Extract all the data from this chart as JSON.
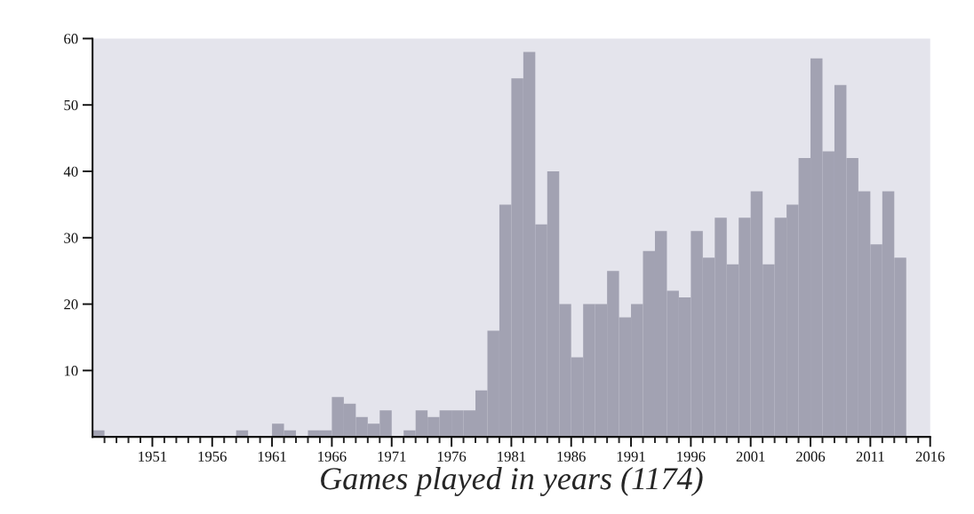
{
  "chart_data": {
    "type": "histogram",
    "xlabel": "Games played in years (1174)",
    "bins": [
      1946,
      1947,
      1948,
      1949,
      1950,
      1951,
      1952,
      1953,
      1954,
      1955,
      1956,
      1957,
      1958,
      1959,
      1960,
      1961,
      1962,
      1963,
      1964,
      1965,
      1966,
      1967,
      1968,
      1969,
      1970,
      1971,
      1972,
      1973,
      1974,
      1975,
      1976,
      1977,
      1978,
      1979,
      1980,
      1981,
      1982,
      1983,
      1984,
      1985,
      1986,
      1987,
      1988,
      1989,
      1990,
      1991,
      1992,
      1993,
      1994,
      1995,
      1996,
      1997,
      1998,
      1999,
      2000,
      2001,
      2002,
      2003,
      2004,
      2005,
      2006,
      2007,
      2008,
      2009,
      2010,
      2011,
      2012,
      2013,
      2014
    ],
    "values": [
      1,
      0,
      0,
      0,
      0,
      0,
      0,
      0,
      0,
      0,
      0,
      0,
      1,
      0,
      0,
      2,
      1,
      0,
      1,
      1,
      6,
      5,
      3,
      2,
      4,
      0,
      1,
      4,
      3,
      4,
      4,
      4,
      7,
      16,
      35,
      54,
      58,
      32,
      40,
      20,
      12,
      20,
      20,
      25,
      18,
      20,
      28,
      31,
      22,
      21,
      31,
      27,
      33,
      26,
      33,
      37,
      26,
      33,
      35,
      42,
      57,
      43,
      53,
      42,
      37,
      29,
      37,
      27
    ],
    "color": "#a2a2b2",
    "xlim": [
      1946,
      2016
    ],
    "xticks": [
      {
        "value": 1947,
        "label": null
      },
      {
        "value": 1948,
        "label": null
      },
      {
        "value": 1949,
        "label": null
      },
      {
        "value": 1950,
        "label": null
      },
      1951,
      {
        "value": 1952,
        "label": null
      },
      {
        "value": 1953,
        "label": null
      },
      {
        "value": 1954,
        "label": null
      },
      {
        "value": 1955,
        "label": null
      },
      1956,
      {
        "value": 1957,
        "label": null
      },
      {
        "value": 1958,
        "label": null
      },
      {
        "value": 1959,
        "label": null
      },
      {
        "value": 1960,
        "label": null
      },
      1961,
      {
        "value": 1962,
        "label": null
      },
      {
        "value": 1963,
        "label": null
      },
      {
        "value": 1964,
        "label": null
      },
      {
        "value": 1965,
        "label": null
      },
      1966,
      {
        "value": 1967,
        "label": null
      },
      {
        "value": 1968,
        "label": null
      },
      {
        "value": 1969,
        "label": null
      },
      {
        "value": 1970,
        "label": null
      },
      1971,
      {
        "value": 1972,
        "label": null
      },
      {
        "value": 1973,
        "label": null
      },
      {
        "value": 1974,
        "label": null
      },
      {
        "value": 1975,
        "label": null
      },
      1976,
      {
        "value": 1977,
        "label": null
      },
      {
        "value": 1978,
        "label": null
      },
      {
        "value": 1979,
        "label": null
      },
      {
        "value": 1980,
        "label": null
      },
      1981,
      {
        "value": 1982,
        "label": null
      },
      {
        "value": 1983,
        "label": null
      },
      {
        "value": 1984,
        "label": null
      },
      {
        "value": 1985,
        "label": null
      },
      1986,
      {
        "value": 1987,
        "label": null
      },
      {
        "value": 1988,
        "label": null
      },
      {
        "value": 1989,
        "label": null
      },
      {
        "value": 1990,
        "label": null
      },
      1991,
      {
        "value": 1992,
        "label": null
      },
      {
        "value": 1993,
        "label": null
      },
      {
        "value": 1994,
        "label": null
      },
      {
        "value": 1995,
        "label": null
      },
      1996,
      {
        "value": 1997,
        "label": null
      },
      {
        "value": 1998,
        "label": null
      },
      {
        "value": 1999,
        "label": null
      },
      {
        "value": 2000,
        "label": null
      },
      2001,
      {
        "value": 2002,
        "label": null
      },
      {
        "value": 2003,
        "label": null
      },
      {
        "value": 2004,
        "label": null
      },
      {
        "value": 2005,
        "label": null
      },
      2006,
      {
        "value": 2007,
        "label": null
      },
      {
        "value": 2008,
        "label": null
      },
      {
        "value": 2009,
        "label": null
      },
      {
        "value": 2010,
        "label": null
      },
      2011,
      {
        "value": 2012,
        "label": null
      },
      {
        "value": 2013,
        "label": null
      },
      {
        "value": 2014,
        "label": null
      },
      {
        "value": 2015,
        "label": null
      },
      2016
    ],
    "ylim": [
      0,
      60
    ],
    "yticks": [
      10,
      20,
      30,
      40,
      50,
      60
    ],
    "grid": false
  }
}
